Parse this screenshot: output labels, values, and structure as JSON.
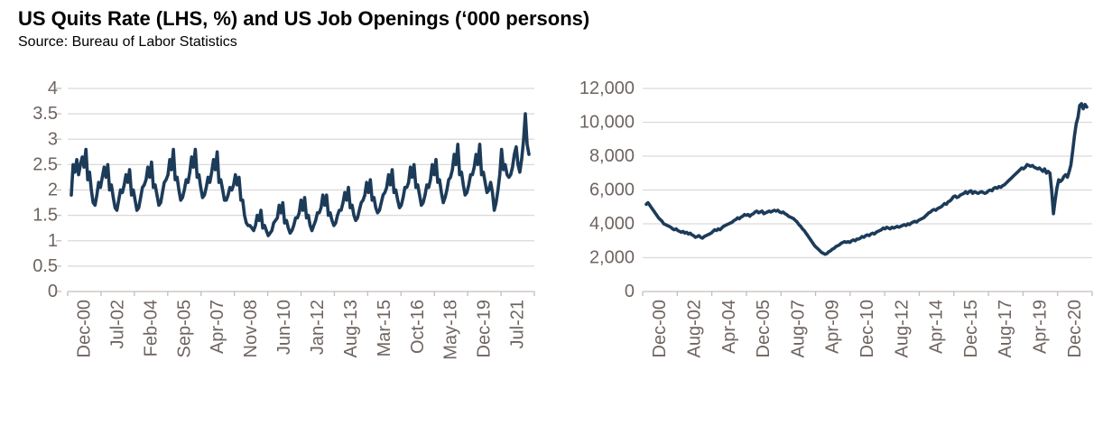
{
  "header": {
    "title": "US Quits Rate (LHS, %) and US Job Openings (‘000 persons)",
    "source": "Source: Bureau of Labor Statistics"
  },
  "style": {
    "line_color": "#1c3b59",
    "grid_color": "#d9d9d9",
    "axis_color": "#c3bebb",
    "tick_label_color": "#6f6460",
    "title_color": "#000000"
  },
  "chart_data": [
    {
      "type": "line",
      "name": "us-quits-rate",
      "series_label": "US Quits Rate (%)",
      "x_start": "Dec-00",
      "x_end": "Nov-21",
      "x_frequency": "monthly",
      "ylim": [
        0,
        4
      ],
      "grid": true,
      "legend": "none",
      "ytick_values": [
        0,
        0.5,
        1,
        1.5,
        2,
        2.5,
        3,
        3.5,
        4
      ],
      "ytick_labels": [
        "0",
        "0.5",
        "1",
        "1.5",
        "2",
        "2.5",
        "3",
        "3.5",
        "4"
      ],
      "xtick_labels": [
        "Dec-00",
        "Jul-02",
        "Feb-04",
        "Sep-05",
        "Apr-07",
        "Nov-08",
        "Jun-10",
        "Jan-12",
        "Aug-13",
        "Mar-15",
        "Oct-16",
        "May-18",
        "Dec-19",
        "Jul-21"
      ],
      "values": [
        1.9,
        2.5,
        2.35,
        2.6,
        2.3,
        2.5,
        2.65,
        2.45,
        2.8,
        2.2,
        2.35,
        2.0,
        1.75,
        1.7,
        1.9,
        2.15,
        2.05,
        2.25,
        2.45,
        2.25,
        2.5,
        2.0,
        2.1,
        1.85,
        1.65,
        1.6,
        1.8,
        2.0,
        1.95,
        2.1,
        2.3,
        2.15,
        2.4,
        1.9,
        2.0,
        1.8,
        1.6,
        1.65,
        1.85,
        2.05,
        2.1,
        2.2,
        2.45,
        2.25,
        2.55,
        2.05,
        2.1,
        1.9,
        1.7,
        1.75,
        1.95,
        2.15,
        2.2,
        2.3,
        2.6,
        2.4,
        2.8,
        2.2,
        2.25,
        2.0,
        1.8,
        1.85,
        2.0,
        2.2,
        2.15,
        2.35,
        2.65,
        2.45,
        2.8,
        2.25,
        2.3,
        2.05,
        1.85,
        1.9,
        2.05,
        2.25,
        2.15,
        2.35,
        2.6,
        2.4,
        2.75,
        2.15,
        2.2,
        2.0,
        1.8,
        1.8,
        1.9,
        2.05,
        2.0,
        2.1,
        2.3,
        2.1,
        2.25,
        1.8,
        1.8,
        1.5,
        1.35,
        1.3,
        1.3,
        1.25,
        1.2,
        1.3,
        1.5,
        1.4,
        1.6,
        1.25,
        1.3,
        1.2,
        1.1,
        1.15,
        1.2,
        1.35,
        1.4,
        1.45,
        1.7,
        1.55,
        1.75,
        1.35,
        1.4,
        1.25,
        1.15,
        1.2,
        1.3,
        1.45,
        1.45,
        1.55,
        1.8,
        1.6,
        1.85,
        1.45,
        1.5,
        1.3,
        1.2,
        1.3,
        1.4,
        1.55,
        1.55,
        1.65,
        1.9,
        1.7,
        1.9,
        1.5,
        1.55,
        1.4,
        1.3,
        1.35,
        1.5,
        1.6,
        1.6,
        1.75,
        1.95,
        1.8,
        2.05,
        1.65,
        1.7,
        1.5,
        1.4,
        1.45,
        1.6,
        1.75,
        1.8,
        1.9,
        2.15,
        1.95,
        2.2,
        1.8,
        1.85,
        1.65,
        1.55,
        1.6,
        1.75,
        1.9,
        1.95,
        2.05,
        2.3,
        2.1,
        2.4,
        1.95,
        2.0,
        1.8,
        1.65,
        1.7,
        1.85,
        2.05,
        2.05,
        2.15,
        2.45,
        2.25,
        2.5,
        2.05,
        2.1,
        1.9,
        1.7,
        1.75,
        1.9,
        2.1,
        2.05,
        2.2,
        2.5,
        2.3,
        2.6,
        2.15,
        2.2,
        1.95,
        1.75,
        1.85,
        2.0,
        2.2,
        2.25,
        2.4,
        2.7,
        2.5,
        2.9,
        2.3,
        2.35,
        2.1,
        1.9,
        1.95,
        2.1,
        2.3,
        2.3,
        2.45,
        2.7,
        2.5,
        2.9,
        2.3,
        2.35,
        2.15,
        1.95,
        2.0,
        2.15,
        1.95,
        1.6,
        1.75,
        2.0,
        2.3,
        2.8,
        2.4,
        2.5,
        2.3,
        2.25,
        2.3,
        2.45,
        2.7,
        2.85,
        2.5,
        2.35,
        2.6,
        2.95,
        3.5,
        2.9,
        2.7
      ]
    },
    {
      "type": "line",
      "name": "us-job-openings",
      "series_label": "US Job Openings ('000 persons)",
      "x_start": "Dec-00",
      "x_end": "Nov-21",
      "x_frequency": "monthly",
      "ylim": [
        0,
        12000
      ],
      "grid": true,
      "legend": "none",
      "ytick_values": [
        0,
        2000,
        4000,
        6000,
        8000,
        10000,
        12000
      ],
      "ytick_labels": [
        "0",
        "2,000",
        "4,000",
        "6,000",
        "8,000",
        "10,000",
        "12,000"
      ],
      "xtick_labels": [
        "Dec-00",
        "Aug-02",
        "Apr-04",
        "Dec-05",
        "Aug-07",
        "Apr-09",
        "Dec-10",
        "Aug-12",
        "Apr-14",
        "Dec-15",
        "Aug-17",
        "Apr-19",
        "Dec-20"
      ],
      "values": [
        5150,
        5250,
        5100,
        4950,
        4800,
        4650,
        4500,
        4350,
        4250,
        4150,
        4000,
        3950,
        3900,
        3850,
        3800,
        3700,
        3650,
        3700,
        3600,
        3550,
        3500,
        3550,
        3450,
        3500,
        3400,
        3450,
        3350,
        3300,
        3200,
        3250,
        3300,
        3200,
        3150,
        3250,
        3300,
        3350,
        3400,
        3450,
        3550,
        3650,
        3600,
        3700,
        3650,
        3750,
        3850,
        3900,
        3950,
        4000,
        4050,
        4100,
        4200,
        4250,
        4350,
        4300,
        4400,
        4450,
        4550,
        4500,
        4550,
        4450,
        4550,
        4600,
        4700,
        4750,
        4650,
        4700,
        4750,
        4600,
        4650,
        4700,
        4750,
        4700,
        4750,
        4800,
        4750,
        4800,
        4700,
        4650,
        4700,
        4600,
        4550,
        4450,
        4400,
        4350,
        4300,
        4200,
        4100,
        3950,
        3850,
        3700,
        3600,
        3450,
        3300,
        3150,
        3000,
        2850,
        2700,
        2600,
        2500,
        2400,
        2300,
        2250,
        2200,
        2250,
        2350,
        2400,
        2500,
        2550,
        2650,
        2700,
        2750,
        2850,
        2900,
        2950,
        2900,
        2950,
        2900,
        3000,
        3050,
        3000,
        3100,
        3100,
        3150,
        3250,
        3200,
        3300,
        3350,
        3300,
        3400,
        3450,
        3400,
        3500,
        3550,
        3600,
        3650,
        3750,
        3700,
        3800,
        3750,
        3700,
        3800,
        3750,
        3800,
        3850,
        3800,
        3850,
        3900,
        3950,
        3900,
        4000,
        3950,
        4050,
        4100,
        4150,
        4100,
        4200,
        4250,
        4300,
        4350,
        4450,
        4550,
        4650,
        4700,
        4800,
        4850,
        4800,
        4900,
        4950,
        5000,
        5100,
        5200,
        5150,
        5300,
        5350,
        5450,
        5600,
        5650,
        5550,
        5600,
        5700,
        5750,
        5800,
        5900,
        5800,
        5900,
        5950,
        5800,
        5900,
        5850,
        5800,
        5850,
        5900,
        5850,
        5800,
        5850,
        5950,
        6000,
        5950,
        6100,
        6150,
        6100,
        6200,
        6150,
        6250,
        6300,
        6400,
        6500,
        6600,
        6700,
        6800,
        6900,
        7000,
        7100,
        7200,
        7300,
        7250,
        7350,
        7500,
        7450,
        7400,
        7450,
        7350,
        7300,
        7250,
        7300,
        7200,
        7100,
        7250,
        7000,
        7100,
        7000,
        6000,
        4600,
        5400,
        6100,
        6600,
        6500,
        6600,
        6800,
        6900,
        6750,
        7100,
        7500,
        8300,
        9200,
        9900,
        10300,
        11000,
        11100,
        10800,
        11050,
        10900
      ]
    }
  ]
}
